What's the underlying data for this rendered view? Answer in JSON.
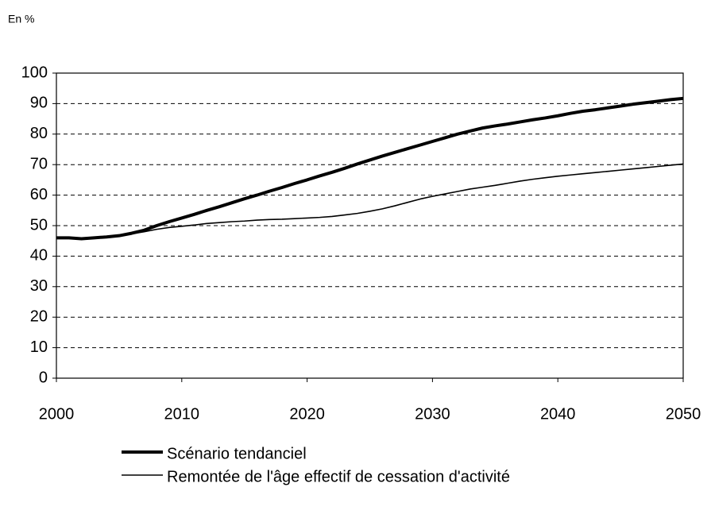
{
  "chart_data": {
    "type": "line",
    "y_label": "En %",
    "x": [
      2000,
      2001,
      2002,
      2003,
      2004,
      2005,
      2006,
      2007,
      2008,
      2009,
      2010,
      2011,
      2012,
      2013,
      2014,
      2015,
      2016,
      2017,
      2018,
      2019,
      2020,
      2021,
      2022,
      2023,
      2024,
      2025,
      2026,
      2027,
      2028,
      2029,
      2030,
      2031,
      2032,
      2033,
      2034,
      2035,
      2036,
      2037,
      2038,
      2039,
      2040,
      2041,
      2042,
      2043,
      2044,
      2045,
      2046,
      2047,
      2048,
      2049,
      2050
    ],
    "series": [
      {
        "name": "Scénario tendanciel",
        "color": "#000000",
        "values": [
          46,
          46,
          45.7,
          46,
          46.3,
          46.7,
          47.5,
          48.5,
          50,
          51.3,
          52.5,
          53.7,
          55,
          56.2,
          57.5,
          58.8,
          60,
          61.3,
          62.5,
          63.8,
          65,
          66.3,
          67.5,
          68.8,
          70.2,
          71.5,
          72.8,
          74,
          75.2,
          76.4,
          77.6,
          78.8,
          80,
          81,
          82,
          82.7,
          83.3,
          84,
          84.7,
          85.3,
          86,
          86.8,
          87.5,
          88,
          88.6,
          89.2,
          89.8,
          90.3,
          90.8,
          91.3,
          91.7
        ]
      },
      {
        "name": "Remontée de l'âge effectif de cessation d'activité",
        "color": "#000000",
        "values": [
          46,
          46,
          45.7,
          46,
          46.3,
          46.7,
          47.3,
          48,
          48.8,
          49.4,
          49.8,
          50.2,
          50.7,
          51,
          51.3,
          51.5,
          51.8,
          52,
          52.1,
          52.3,
          52.5,
          52.7,
          53,
          53.5,
          54,
          54.7,
          55.5,
          56.5,
          57.6,
          58.7,
          59.6,
          60.4,
          61.2,
          62,
          62.6,
          63.2,
          63.9,
          64.6,
          65.2,
          65.7,
          66.2,
          66.6,
          67,
          67.4,
          67.8,
          68.2,
          68.6,
          69,
          69.4,
          69.8,
          70.2
        ]
      }
    ],
    "xlim": [
      2000,
      2050
    ],
    "xticks": [
      2000,
      2010,
      2020,
      2030,
      2040,
      2050
    ],
    "ylim": [
      0,
      100
    ],
    "yticks": [
      0,
      10,
      20,
      30,
      40,
      50,
      60,
      70,
      80,
      90,
      100
    ],
    "grid": true
  }
}
